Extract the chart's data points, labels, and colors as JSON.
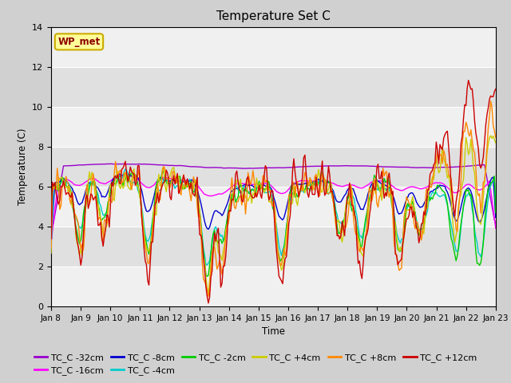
{
  "title": "Temperature Set C",
  "xlabel": "Time",
  "ylabel": "Temperature (C)",
  "ylim": [
    0,
    14
  ],
  "series_colors": {
    "TC_C -32cm": "#9900cc",
    "TC_C -16cm": "#ff00ff",
    "TC_C -8cm": "#0000cc",
    "TC_C -4cm": "#00cccc",
    "TC_C -2cm": "#00cc00",
    "TC_C +4cm": "#cccc00",
    "TC_C +8cm": "#ff8800",
    "TC_C +12cm": "#cc0000"
  },
  "xtick_labels": [
    "Jan 8",
    "Jan 9",
    "Jan 10",
    "Jan 11",
    "Jan 12",
    "Jan 13",
    "Jan 14",
    "Jan 15",
    "Jan 16",
    "Jan 17",
    "Jan 18",
    "Jan 19",
    "Jan 20",
    "Jan 21",
    "Jan 22",
    "Jan 23"
  ],
  "ytick_values": [
    0,
    2,
    4,
    6,
    8,
    10,
    12,
    14
  ],
  "wp_met_label": "WP_met",
  "legend_fontsize": 8,
  "title_fontsize": 11,
  "fig_bg": "#d0d0d0",
  "plot_bg_light": "#f0f0f0",
  "plot_bg_dark": "#e0e0e0",
  "grid_color": "#ffffff",
  "linewidth": 1.0
}
